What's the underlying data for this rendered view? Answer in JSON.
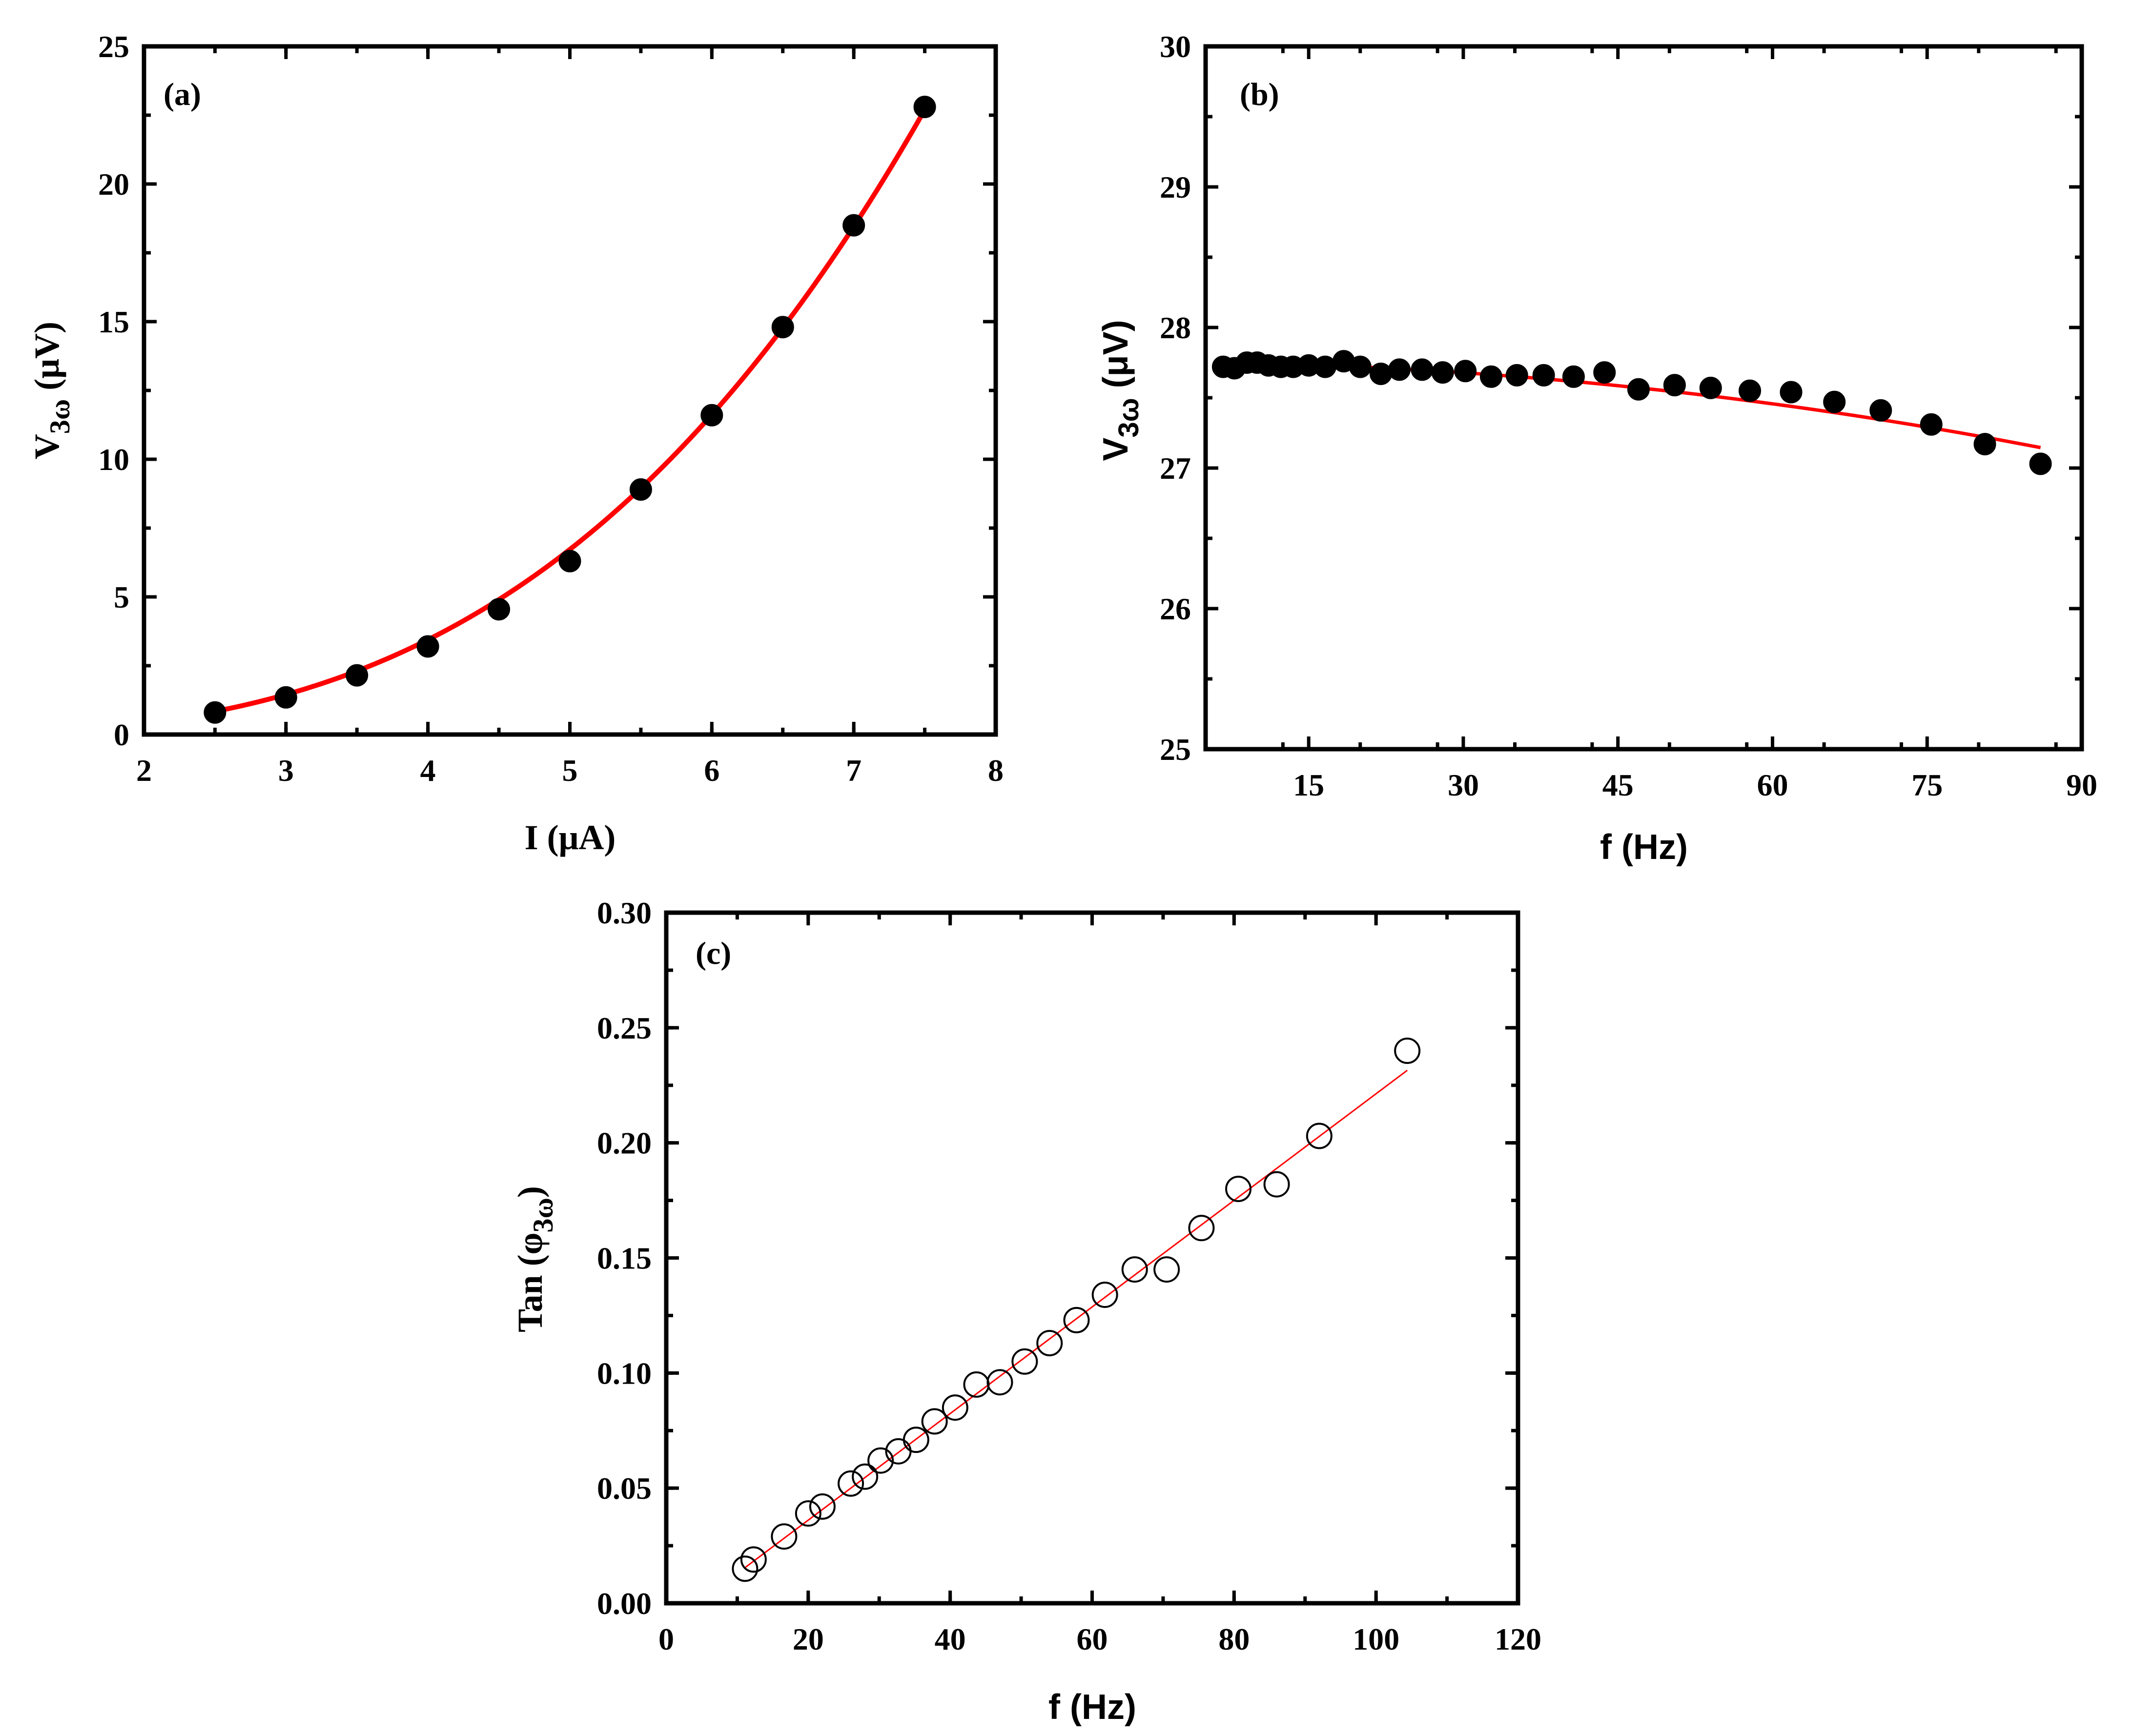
{
  "chart_data": [
    {
      "panel": "(a)",
      "type": "scatter",
      "xlabel": "I (μA)",
      "ylabel": {
        "base": "V",
        "sub": "3ω",
        "unit": " (μV)"
      },
      "xlim": [
        2,
        8
      ],
      "ylim": [
        0,
        25
      ],
      "xticks": [
        2,
        3,
        4,
        5,
        6,
        7,
        8
      ],
      "xtick_labels": [
        "2",
        "3",
        "4",
        "5",
        "6",
        "7",
        "8"
      ],
      "yticks": [
        0,
        5,
        10,
        15,
        20,
        25
      ],
      "ytick_labels": [
        "0",
        "5",
        "10",
        "15",
        "20",
        "25"
      ],
      "x_minor_step": 0.5,
      "y_minor_step": 2.5,
      "marker": "filled-circle",
      "series": [
        {
          "name": "data",
          "x": [
            2.5,
            3.0,
            3.5,
            4.0,
            4.5,
            5.0,
            5.5,
            6.0,
            6.5,
            7.0,
            7.5
          ],
          "y": [
            0.8,
            1.35,
            2.15,
            3.2,
            4.55,
            6.3,
            8.9,
            11.6,
            14.8,
            18.5,
            22.8
          ]
        },
        {
          "name": "fit",
          "kind": "cubic",
          "coef": 0.0538
        }
      ],
      "fit_color": "#ff0000"
    },
    {
      "panel": "(b)",
      "type": "scatter",
      "xlabel": "f (Hz)",
      "ylabel": {
        "base": "V",
        "sub": "3ω",
        "unit": " (μV)"
      },
      "xlim": [
        5,
        90
      ],
      "ylim": [
        25,
        30
      ],
      "xticks": [
        15,
        30,
        45,
        60,
        75,
        90
      ],
      "xtick_labels": [
        "15",
        "30",
        "45",
        "60",
        "75",
        "90"
      ],
      "yticks": [
        25,
        26,
        27,
        28,
        29,
        30
      ],
      "ytick_labels": [
        "25",
        "26",
        "27",
        "28",
        "29",
        "30"
      ],
      "x_minor_step": 7.5,
      "y_minor_step": 0.5,
      "marker": "filled-circle",
      "series": [
        {
          "name": "data",
          "x": [
            6.7,
            7.8,
            9.0,
            10.0,
            11.1,
            12.3,
            13.5,
            15.0,
            16.6,
            18.4,
            20.0,
            22.0,
            23.8,
            26.0,
            28.0,
            30.2,
            32.7,
            35.2,
            37.8,
            40.7,
            43.7,
            47.0,
            50.5,
            54.0,
            57.8,
            61.8,
            66.0,
            70.5,
            75.4,
            80.6,
            86.0
          ],
          "y": [
            27.72,
            27.71,
            27.75,
            27.75,
            27.73,
            27.72,
            27.72,
            27.73,
            27.72,
            27.76,
            27.72,
            27.67,
            27.7,
            27.7,
            27.68,
            27.69,
            27.65,
            27.66,
            27.66,
            27.65,
            27.68,
            27.56,
            27.59,
            27.57,
            27.55,
            27.54,
            27.47,
            27.41,
            27.31,
            27.17,
            27.03
          ]
        },
        {
          "name": "fit",
          "kind": "quadratic",
          "a": 27.752,
          "c": 8.2e-05
        }
      ],
      "fit_color": "#ff0000"
    },
    {
      "panel": "(c)",
      "type": "scatter",
      "xlabel": "f (Hz)",
      "ylabel": {
        "base": "Tan (φ",
        "sub": "3ω",
        "unit": ")"
      },
      "xlim": [
        0,
        120
      ],
      "ylim": [
        0,
        0.3
      ],
      "xticks": [
        0,
        20,
        40,
        60,
        80,
        100,
        120
      ],
      "xtick_labels": [
        "0",
        "20",
        "40",
        "60",
        "80",
        "100",
        "120"
      ],
      "yticks": [
        0,
        0.05,
        0.1,
        0.15,
        0.2,
        0.25,
        0.3
      ],
      "ytick_labels": [
        "0.00",
        "0.05",
        "0.10",
        "0.15",
        "0.20",
        "0.25",
        "0.30"
      ],
      "x_minor_step": 10,
      "y_minor_step": 0.025,
      "marker": "open-circle",
      "series": [
        {
          "name": "data",
          "x": [
            11.1,
            12.3,
            16.6,
            20.0,
            22.0,
            26.0,
            28.0,
            30.2,
            32.7,
            35.2,
            37.8,
            40.7,
            43.7,
            47.0,
            50.5,
            54.0,
            57.8,
            61.8,
            66.0,
            70.5,
            75.4,
            80.6,
            86.0,
            92.0,
            104.4
          ],
          "y": [
            0.015,
            0.019,
            0.029,
            0.039,
            0.042,
            0.052,
            0.055,
            0.062,
            0.066,
            0.071,
            0.079,
            0.085,
            0.095,
            0.096,
            0.105,
            0.113,
            0.123,
            0.134,
            0.145,
            0.145,
            0.163,
            0.18,
            0.182,
            0.203,
            0.24
          ]
        },
        {
          "name": "fit",
          "kind": "linear",
          "x": [
            11.1,
            104.4
          ],
          "y": [
            0.0155,
            0.2315
          ]
        }
      ],
      "fit_color": "#ff0000"
    }
  ]
}
